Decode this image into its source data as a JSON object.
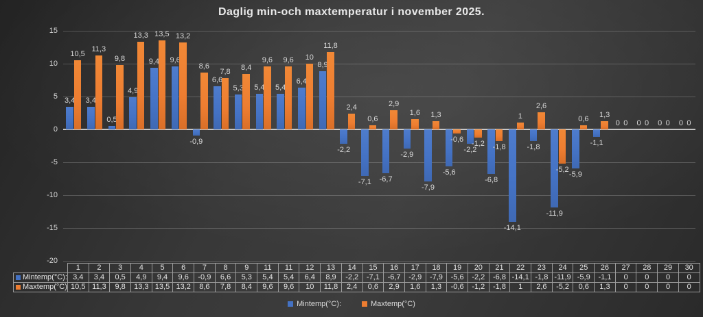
{
  "title": "Daglig min-och maxtemperatur i november 2025.",
  "colors": {
    "min_series": "#4472C4",
    "max_series": "#ED7D31"
  },
  "legend": {
    "items": [
      {
        "label": "Mintemp(°C):",
        "color": "#4472C4"
      },
      {
        "label": "Maxtemp(°C)",
        "color": "#ED7D31"
      }
    ]
  },
  "chart_data": {
    "type": "bar",
    "title": "Daglig min-och maxtemperatur i november 2025.",
    "xlabel": "",
    "ylabel": "",
    "ylim": [
      -20,
      15
    ],
    "yticks": [
      15,
      10,
      5,
      0,
      -5,
      -10,
      -15,
      -20
    ],
    "ytick_labels": [
      "15",
      "10",
      "5",
      "0",
      "-5",
      "-10",
      "-15",
      "-20"
    ],
    "grid": true,
    "legend_position": "bottom",
    "categories": [
      "1",
      "2",
      "3",
      "4",
      "5",
      "6",
      "7",
      "8",
      "9",
      "11",
      "11",
      "12",
      "13",
      "14",
      "15",
      "16",
      "17",
      "18",
      "19",
      "20",
      "21",
      "22",
      "23",
      "24",
      "25",
      "26",
      "27",
      "28",
      "29",
      "30"
    ],
    "series": [
      {
        "name": "Mintemp(°C):",
        "color": "#4472C4",
        "values": [
          3.4,
          3.4,
          0.5,
          4.9,
          9.4,
          9.6,
          -0.9,
          6.6,
          5.3,
          5.4,
          5.4,
          6.4,
          8.9,
          -2.2,
          -7.1,
          -6.7,
          -2.9,
          -7.9,
          -5.6,
          -2.2,
          -6.8,
          -14.1,
          -1.8,
          -11.9,
          -5.9,
          -1.1,
          0,
          0,
          0,
          0
        ],
        "labels": [
          "3,4",
          "3,4",
          "0,5",
          "4,9",
          "9,4",
          "9,6",
          "-0,9",
          "6,6",
          "5,3",
          "5,4",
          "5,4",
          "6,4",
          "8,9",
          "-2,2",
          "-7,1",
          "-6,7",
          "-2,9",
          "-7,9",
          "-5,6",
          "-2,2",
          "-6,8",
          "-14,1",
          "-1,8",
          "-11,9",
          "-5,9",
          "-1,1",
          "0",
          "0",
          "0",
          "0"
        ]
      },
      {
        "name": "Maxtemp(°C)",
        "color": "#ED7D31",
        "values": [
          10.5,
          11.3,
          9.8,
          13.3,
          13.5,
          13.2,
          8.6,
          7.8,
          8.4,
          9.6,
          9.6,
          10,
          11.8,
          2.4,
          0.6,
          2.9,
          1.6,
          1.3,
          -0.6,
          -1.2,
          -1.8,
          1,
          2.6,
          -5.2,
          0.6,
          1.3,
          0,
          0,
          0,
          0
        ],
        "labels": [
          "10,5",
          "11,3",
          "9,8",
          "13,3",
          "13,5",
          "13,2",
          "8,6",
          "7,8",
          "8,4",
          "9,6",
          "9,6",
          "10",
          "11,8",
          "2,4",
          "0,6",
          "2,9",
          "1,6",
          "1,3",
          "-0,6",
          "-1,2",
          "-1,8",
          "1",
          "2,6",
          "-5,2",
          "0,6",
          "1,3",
          "0",
          "0",
          "0",
          "0"
        ]
      }
    ]
  }
}
